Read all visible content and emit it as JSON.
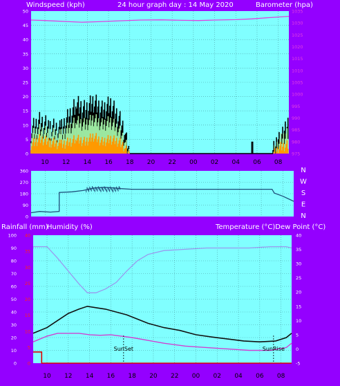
{
  "colors": {
    "frame": "#9400ff",
    "plot_bg": "#80ffff",
    "grid": "#4a9aa0",
    "wind": "#000000",
    "gust": "#9be7a0",
    "avg": "#ff9900",
    "baro": "#e040e0",
    "humidity": "#9999ee",
    "temperature": "#111111",
    "dewpoint": "#d040d0",
    "rain": "#dd0000",
    "direction": "#1f4f7a",
    "white": "#ffffff",
    "red_ticks": "#ff2020"
  },
  "labels": {
    "windspeed": "Windspeed (kph)",
    "title": "24 hour graph day : 14 May 2020",
    "barometer": "Barometer (hpa)",
    "rainfall": "Rainfall (mm)",
    "humidity": "Humidity (%)",
    "temp_dew": "Temperature (°C)Dew Point (°C)",
    "sunset": "SunSet",
    "sunrise": "SunRise",
    "compass": [
      "N",
      "W",
      "S",
      "E",
      "N"
    ]
  },
  "chart_data": [
    {
      "id": "wind",
      "type": "line",
      "x_ticks": [
        "10",
        "12",
        "14",
        "16",
        "18",
        "20",
        "22",
        "00",
        "02",
        "04",
        "06",
        "08"
      ],
      "y_left_ticks": [
        "0",
        "5",
        "10",
        "15",
        "20",
        "25",
        "30",
        "35",
        "40",
        "45",
        "50"
      ],
      "y_right_ticks": [
        "975",
        "980",
        "985",
        "990",
        "995",
        "1000",
        "1005",
        "1010",
        "1015",
        "1020",
        "1025",
        "1030",
        "1035"
      ],
      "xlim_hours": [
        8.7,
        33.0
      ],
      "wind_ylim": [
        0,
        50
      ],
      "baro_ylim": [
        975,
        1035
      ],
      "series": [
        {
          "key": "baro",
          "hours": [
            8.7,
            10.0,
            12.0,
            13.5,
            15.0,
            17.0,
            19.0,
            21.0,
            23.0,
            24.5,
            26.0,
            28.0,
            29.5,
            31.0,
            33.0
          ],
          "values": [
            1031.2,
            1031.0,
            1030.6,
            1030.3,
            1030.5,
            1030.9,
            1031.2,
            1031.3,
            1031.1,
            1031.0,
            1031.2,
            1031.4,
            1031.7,
            1032.2,
            1032.8
          ]
        },
        {
          "key": "wind",
          "hours": [
            8.7,
            9.5,
            10.5,
            11.5,
            12.3,
            13.0,
            13.8,
            14.6,
            15.4,
            16.2,
            17.0,
            17.6,
            17.8,
            18.0,
            26.0,
            29.5,
            30.2,
            31.5,
            32.0,
            32.5,
            33.0
          ],
          "values": [
            8,
            11,
            9,
            8,
            13,
            17,
            15,
            18,
            15,
            17,
            12,
            7,
            3,
            0,
            0,
            0,
            0,
            0,
            5,
            6,
            11
          ]
        },
        {
          "key": "gust",
          "hours": [
            8.7,
            9.5,
            10.5,
            11.5,
            12.3,
            13.0,
            13.8,
            14.6,
            15.4,
            16.2,
            17.0,
            17.6,
            18.0,
            31.5,
            32.0,
            33.0
          ],
          "values": [
            6,
            8,
            7,
            6,
            9,
            11,
            10,
            12,
            10,
            11,
            8,
            4,
            0,
            0,
            4,
            7
          ]
        },
        {
          "key": "avg",
          "hours": [
            8.7,
            9.5,
            10.5,
            11.5,
            12.3,
            13.0,
            13.8,
            14.6,
            15.4,
            16.2,
            17.0,
            17.6,
            18.0,
            31.5,
            32.0,
            33.0
          ],
          "values": [
            3,
            5,
            4,
            3,
            4,
            5,
            4,
            6,
            4,
            5,
            4,
            2,
            0,
            0,
            2,
            3
          ]
        },
        {
          "key": "spike",
          "hours": [
            29.5,
            29.5,
            29.6,
            29.6
          ],
          "values": [
            0,
            4,
            4,
            0
          ]
        }
      ]
    },
    {
      "id": "direction",
      "type": "line",
      "ylim": [
        0,
        360
      ],
      "y_ticks": [
        "0",
        "90",
        "180",
        "270",
        "360"
      ],
      "series": [
        {
          "key": "direction",
          "hours": [
            8.7,
            9.5,
            10.5,
            11.3,
            11.3,
            12.5,
            13.5,
            14.5,
            15.5,
            16.5,
            17.0,
            18.0,
            20.0,
            24.0,
            28.0,
            31.0,
            31.2,
            32.0,
            33.0
          ],
          "values": [
            30,
            40,
            35,
            40,
            190,
            195,
            205,
            225,
            230,
            225,
            220,
            215,
            215,
            215,
            215,
            215,
            185,
            160,
            120
          ]
        }
      ]
    },
    {
      "id": "temperature",
      "type": "line",
      "left_ticks": [
        "0",
        "10",
        "20",
        "30",
        "40",
        "50",
        "60",
        "70",
        "80",
        "90",
        "100"
      ],
      "red_ticks": [
        "0",
        "5",
        "10",
        "15",
        "20",
        "25",
        "30",
        "35",
        "40"
      ],
      "right_ticks": [
        "-5",
        "0",
        "5",
        "10",
        "15",
        "20",
        "25",
        "30",
        "35",
        "40"
      ],
      "temp_ylim": [
        -5,
        40
      ],
      "humidity_ylim": [
        0,
        100
      ],
      "rain_ylim": [
        0,
        40
      ],
      "sunset_hour": 17.2,
      "sunrise_hour": 31.3,
      "series": [
        {
          "key": "humidity",
          "hours": [
            8.7,
            10.0,
            11.0,
            12.0,
            13.0,
            13.8,
            14.6,
            15.5,
            16.5,
            17.5,
            18.5,
            19.5,
            21.0,
            23.0,
            25.0,
            27.0,
            29.0,
            31.0,
            32.5,
            33.0
          ],
          "values": [
            91,
            91,
            82,
            72,
            62,
            55,
            55,
            58,
            63,
            72,
            80,
            85,
            88,
            89,
            90,
            90,
            90,
            91,
            91,
            90
          ]
        },
        {
          "key": "temperature",
          "hours": [
            8.7,
            10.0,
            11.0,
            12.0,
            13.0,
            13.8,
            14.6,
            15.5,
            16.5,
            17.5,
            18.5,
            19.5,
            21.0,
            22.5,
            24.0,
            25.5,
            27.0,
            28.5,
            30.0,
            31.5,
            32.5,
            33.0
          ],
          "values": [
            5.5,
            7.5,
            10,
            12.5,
            14,
            15,
            14.5,
            14,
            13,
            12,
            10.5,
            9,
            7.5,
            6.5,
            5,
            4.2,
            3.5,
            2.8,
            2.5,
            2.8,
            4,
            5.5
          ]
        },
        {
          "key": "dewpoint",
          "hours": [
            8.7,
            10.0,
            11.0,
            12.0,
            13.0,
            14.0,
            15.0,
            16.0,
            17.0,
            18.0,
            19.5,
            21.0,
            23.0,
            25.0,
            27.0,
            29.0,
            31.0,
            32.5,
            33.0
          ],
          "values": [
            2.5,
            4.5,
            5.5,
            5.5,
            5.5,
            5,
            4.8,
            5,
            4.5,
            4,
            3,
            2,
            1,
            0.5,
            0,
            -0.5,
            -0.5,
            0.5,
            2
          ]
        },
        {
          "key": "rain",
          "hours": [
            8.7,
            9.5,
            9.5,
            33.0
          ],
          "values": [
            3.5,
            3.5,
            0,
            0
          ]
        }
      ]
    }
  ]
}
